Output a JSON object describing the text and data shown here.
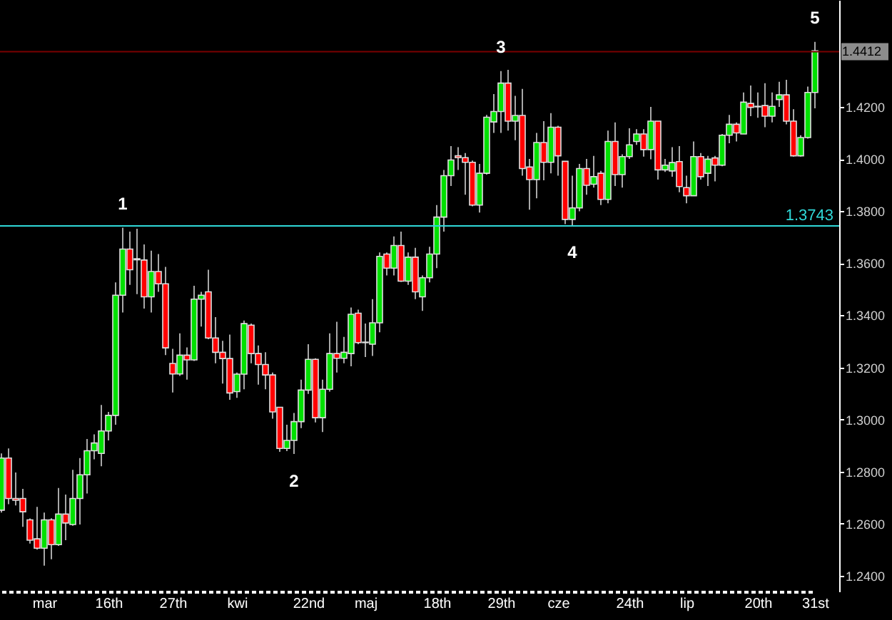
{
  "chart_data": {
    "type": "candlestick",
    "categories": [
      null,
      null,
      null,
      null,
      null,
      null,
      "mar",
      null,
      null,
      null,
      null,
      null,
      null,
      null,
      null,
      "16th",
      null,
      null,
      null,
      null,
      null,
      null,
      null,
      null,
      "27th",
      null,
      null,
      null,
      null,
      null,
      null,
      null,
      null,
      "kwi",
      null,
      null,
      null,
      null,
      null,
      null,
      null,
      null,
      null,
      "22nd",
      null,
      null,
      null,
      null,
      null,
      null,
      null,
      "maj",
      null,
      null,
      null,
      null,
      null,
      null,
      null,
      null,
      null,
      "18th",
      null,
      null,
      null,
      null,
      null,
      null,
      null,
      null,
      "29th",
      null,
      null,
      null,
      null,
      null,
      null,
      null,
      "cze",
      null,
      null,
      null,
      null,
      null,
      null,
      null,
      null,
      null,
      "24th",
      null,
      null,
      null,
      null,
      null,
      null,
      null,
      "lip",
      null,
      null,
      null,
      null,
      null,
      null,
      null,
      null,
      null,
      "20th",
      null,
      null,
      null,
      null,
      null,
      null,
      null,
      "31st"
    ],
    "ohlc": [
      [
        1.2652,
        1.287,
        1.2643,
        1.2852
      ],
      [
        1.2852,
        1.2889,
        1.2675,
        1.2697
      ],
      [
        1.2697,
        1.2797,
        1.267,
        1.269
      ],
      [
        1.2697,
        1.2734,
        1.2588,
        1.2646
      ],
      [
        1.2615,
        1.262,
        1.2524,
        1.2537
      ],
      [
        1.2542,
        1.2665,
        1.2501,
        1.2506
      ],
      [
        1.2506,
        1.2643,
        1.2439,
        1.2615
      ],
      [
        1.2615,
        1.2621,
        1.2464,
        1.252
      ],
      [
        1.252,
        1.2737,
        1.2515,
        1.2637
      ],
      [
        1.2637,
        1.2712,
        1.2537,
        1.2603
      ],
      [
        1.2597,
        1.2807,
        1.2592,
        1.2697
      ],
      [
        1.2697,
        1.2852,
        1.2597,
        1.2788
      ],
      [
        1.2788,
        1.2925,
        1.2716,
        1.288
      ],
      [
        1.288,
        1.2943,
        1.2847,
        1.291
      ],
      [
        1.287,
        1.3056,
        1.2821,
        1.2956
      ],
      [
        1.2956,
        1.3029,
        1.292,
        1.3016
      ],
      [
        1.3016,
        1.3526,
        1.298,
        1.3477
      ],
      [
        1.3477,
        1.3736,
        1.3411,
        1.3654
      ],
      [
        1.3654,
        1.3721,
        1.3517,
        1.3575
      ],
      [
        1.3617,
        1.3732,
        1.3481,
        1.3613
      ],
      [
        1.3612,
        1.3672,
        1.3426,
        1.3471
      ],
      [
        1.3471,
        1.3648,
        1.3411,
        1.3568
      ],
      [
        1.3568,
        1.3635,
        1.349,
        1.3521
      ],
      [
        1.3521,
        1.3586,
        1.3247,
        1.3275
      ],
      [
        1.3215,
        1.3271,
        1.3104,
        1.3175
      ],
      [
        1.3175,
        1.3331,
        1.3167,
        1.3247
      ],
      [
        1.3247,
        1.3277,
        1.3153,
        1.3229
      ],
      [
        1.3229,
        1.3513,
        1.3225,
        1.3462
      ],
      [
        1.3462,
        1.349,
        1.3357,
        1.3477
      ],
      [
        1.349,
        1.3575,
        1.3308,
        1.3313
      ],
      [
        1.3313,
        1.3393,
        1.3216,
        1.3258
      ],
      [
        1.3258,
        1.3302,
        1.3138,
        1.3234
      ],
      [
        1.3234,
        1.3326,
        1.3076,
        1.3102
      ],
      [
        1.3107,
        1.318,
        1.3083,
        1.3174
      ],
      [
        1.3174,
        1.338,
        1.3116,
        1.3368
      ],
      [
        1.3362,
        1.3368,
        1.3216,
        1.3253
      ],
      [
        1.3253,
        1.3284,
        1.3134,
        1.3211
      ],
      [
        1.3211,
        1.3258,
        1.3116,
        1.3171
      ],
      [
        1.3171,
        1.318,
        1.3003,
        1.3029
      ],
      [
        1.3047,
        1.3047,
        1.2876,
        1.2889
      ],
      [
        1.2889,
        1.298,
        1.2879,
        1.292
      ],
      [
        1.292,
        1.3025,
        1.2868,
        1.2992
      ],
      [
        1.2992,
        1.3153,
        1.2967,
        1.3113
      ],
      [
        1.3113,
        1.3289,
        1.3098,
        1.3231
      ],
      [
        1.3231,
        1.3235,
        1.2989,
        1.3007
      ],
      [
        1.3007,
        1.3153,
        1.2952,
        1.3116
      ],
      [
        1.3116,
        1.3331,
        1.3107,
        1.3253
      ],
      [
        1.3253,
        1.3375,
        1.318,
        1.3235
      ],
      [
        1.3235,
        1.3317,
        1.3216,
        1.3258
      ],
      [
        1.3253,
        1.343,
        1.3204,
        1.3404
      ],
      [
        1.3408,
        1.3422,
        1.3289,
        1.3295
      ],
      [
        1.3297,
        1.3368,
        1.324,
        1.3295
      ],
      [
        1.3289,
        1.3462,
        1.3244,
        1.3371
      ],
      [
        1.3371,
        1.3641,
        1.3335,
        1.3626
      ],
      [
        1.3635,
        1.3641,
        1.3553,
        1.3581
      ],
      [
        1.3581,
        1.3703,
        1.3553,
        1.3668
      ],
      [
        1.3668,
        1.3721,
        1.3528,
        1.3531
      ],
      [
        1.3531,
        1.3641,
        1.3517,
        1.3623
      ],
      [
        1.3623,
        1.3659,
        1.3462,
        1.349
      ],
      [
        1.3471,
        1.3553,
        1.3417,
        1.3544
      ],
      [
        1.3544,
        1.3663,
        1.3526,
        1.3635
      ],
      [
        1.3635,
        1.3823,
        1.3581,
        1.3777
      ],
      [
        1.3777,
        1.3958,
        1.3721,
        1.3936
      ],
      [
        1.3936,
        1.4049,
        1.3896,
        1.3996
      ],
      [
        1.4012,
        1.4045,
        1.3958,
        1.4005
      ],
      [
        1.4005,
        1.4023,
        1.3863,
        1.3987
      ],
      [
        1.3987,
        1.3994,
        1.3818,
        1.3823
      ],
      [
        1.3823,
        1.3981,
        1.3794,
        1.3945
      ],
      [
        1.3945,
        1.4169,
        1.394,
        1.416
      ],
      [
        1.4142,
        1.4249,
        1.41,
        1.4182
      ],
      [
        1.4182,
        1.4337,
        1.41,
        1.4291
      ],
      [
        1.4291,
        1.4342,
        1.4109,
        1.4145
      ],
      [
        1.4145,
        1.4242,
        1.4072,
        1.4167
      ],
      [
        1.4167,
        1.4269,
        1.3936,
        1.3963
      ],
      [
        1.3969,
        1.4,
        1.3805,
        1.3921
      ],
      [
        1.3921,
        1.41,
        1.3849,
        1.4063
      ],
      [
        1.4063,
        1.4145,
        1.3918,
        1.3987
      ],
      [
        1.3987,
        1.4176,
        1.3945,
        1.4122
      ],
      [
        1.4122,
        1.4127,
        1.3936,
        1.4012
      ],
      [
        1.3991,
        1.3991,
        1.375,
        1.3768
      ],
      [
        1.3768,
        1.3936,
        1.3745,
        1.3812
      ],
      [
        1.3812,
        1.3981,
        1.3799,
        1.3963
      ],
      [
        1.3963,
        1.4,
        1.3863,
        1.3899
      ],
      [
        1.3903,
        1.4012,
        1.389,
        1.3932
      ],
      [
        1.3945,
        1.3954,
        1.3823,
        1.3845
      ],
      [
        1.3845,
        1.4109,
        1.383,
        1.4067
      ],
      [
        1.4067,
        1.414,
        1.3896,
        1.394
      ],
      [
        1.394,
        1.4018,
        1.389,
        1.4009
      ],
      [
        1.4009,
        1.4118,
        1.4,
        1.4054
      ],
      [
        1.4067,
        1.4114,
        1.4054,
        1.4096
      ],
      [
        1.4096,
        1.4114,
        1.4009,
        1.4036
      ],
      [
        1.4036,
        1.42,
        1.3999,
        1.4145
      ],
      [
        1.4145,
        1.4145,
        1.3921,
        1.3958
      ],
      [
        1.3958,
        1.4,
        1.395,
        1.3976
      ],
      [
        1.3954,
        1.4045,
        1.3932,
        1.3986
      ],
      [
        1.399,
        1.4049,
        1.3872,
        1.3894
      ],
      [
        1.389,
        1.3936,
        1.383,
        1.3859
      ],
      [
        1.3859,
        1.4067,
        1.3859,
        1.4009
      ],
      [
        1.4009,
        1.4023,
        1.3921,
        1.3932
      ],
      [
        1.3945,
        1.4012,
        1.3896,
        1.3999
      ],
      [
        1.4004,
        1.4012,
        1.3914,
        1.3976
      ],
      [
        1.3976,
        1.4096,
        1.3972,
        1.4091
      ],
      [
        1.4091,
        1.4169,
        1.406,
        1.4133
      ],
      [
        1.4133,
        1.414,
        1.4067,
        1.41
      ],
      [
        1.4096,
        1.4255,
        1.4096,
        1.4218
      ],
      [
        1.4213,
        1.4282,
        1.4164,
        1.4198
      ],
      [
        1.4202,
        1.4255,
        1.4158,
        1.42
      ],
      [
        1.4205,
        1.4291,
        1.4122,
        1.4164
      ],
      [
        1.4164,
        1.4255,
        1.414,
        1.4202
      ],
      [
        1.4228,
        1.4296,
        1.42,
        1.4246
      ],
      [
        1.4246,
        1.4304,
        1.4133,
        1.4145
      ],
      [
        1.4145,
        1.4191,
        1.4009,
        1.4012
      ],
      [
        1.4012,
        1.4091,
        1.4009,
        1.4082
      ],
      [
        1.4082,
        1.4278,
        1.4078,
        1.4255
      ],
      [
        1.4255,
        1.4449,
        1.4194,
        1.4415
      ]
    ],
    "colors": [
      "#00e000",
      "#ff0000",
      "#ff0000",
      "#ff0000",
      "#ff0000",
      "#ff0000",
      "#00e000",
      "#ff0000",
      "#00e000",
      "#ff0000",
      "#00e000",
      "#00e000",
      "#00e000",
      "#00e000",
      "#00e000",
      "#00e000",
      "#00e000",
      "#00e000",
      "#ff0000",
      "#ff0000",
      "#ff0000",
      "#00e000",
      "#ff0000",
      "#ff0000",
      "#ff0000",
      "#00e000",
      "#ff0000",
      "#00e000",
      "#00e000",
      "#ff0000",
      "#ff0000",
      "#ff0000",
      "#ff0000",
      "#00e000",
      "#00e000",
      "#ff0000",
      "#ff0000",
      "#ff0000",
      "#ff0000",
      "#ff0000",
      "#00e000",
      "#00e000",
      "#00e000",
      "#00e000",
      "#ff0000",
      "#00e000",
      "#00e000",
      "#ff0000",
      "#00e000",
      "#00e000",
      "#ff0000",
      "#ff0000",
      "#00e000",
      "#00e000",
      "#ff0000",
      "#00e000",
      "#ff0000",
      "#00e000",
      "#ff0000",
      "#00e000",
      "#00e000",
      "#00e000",
      "#00e000",
      "#00e000",
      "#ff0000",
      "#ff0000",
      "#ff0000",
      "#00e000",
      "#00e000",
      "#00e000",
      "#00e000",
      "#ff0000",
      "#00e000",
      "#ff0000",
      "#ff0000",
      "#00e000",
      "#ff0000",
      "#00e000",
      "#ff0000",
      "#ff0000",
      "#00e000",
      "#00e000",
      "#ff0000",
      "#00e000",
      "#ff0000",
      "#00e000",
      "#ff0000",
      "#00e000",
      "#00e000",
      "#00e000",
      "#ff0000",
      "#00e000",
      "#ff0000",
      "#00e000",
      "#00e000",
      "#ff0000",
      "#ff0000",
      "#00e000",
      "#ff0000",
      "#00e000",
      "#ff0000",
      "#00e000",
      "#00e000",
      "#ff0000",
      "#00e000",
      "#ff0000",
      "#ff0000",
      "#ff0000",
      "#00e000",
      "#00e000",
      "#ff0000",
      "#ff0000",
      "#00e000",
      "#00e000",
      "#00e000"
    ],
    "ylim": [
      1.234,
      1.461
    ],
    "yticks": [
      {
        "value": 1.24,
        "label": "1.2400"
      },
      {
        "value": 1.26,
        "label": "1.2600"
      },
      {
        "value": 1.28,
        "label": "1.2800"
      },
      {
        "value": 1.3,
        "label": "1.3000"
      },
      {
        "value": 1.32,
        "label": "1.3200"
      },
      {
        "value": 1.34,
        "label": "1.3400"
      },
      {
        "value": 1.36,
        "label": "1.3600"
      },
      {
        "value": 1.38,
        "label": "1.3800"
      },
      {
        "value": 1.4,
        "label": "1.4000"
      },
      {
        "value": 1.42,
        "label": "1.4200"
      }
    ],
    "ref_lines": [
      {
        "axis": "y",
        "value": 1.4412,
        "label": "1.4412",
        "color": "#7a0000"
      },
      {
        "axis": "y",
        "value": 1.3743,
        "label": "1.3743",
        "color": "#30d8d8"
      }
    ],
    "annotations": [
      {
        "text": "1",
        "y": 1.3736
      },
      {
        "text": "2",
        "y": 1.2868
      },
      {
        "text": "3",
        "y": 1.4337
      },
      {
        "text": "4",
        "y": 1.3745
      },
      {
        "text": "5",
        "y": 1.4449
      }
    ],
    "grid": false
  }
}
